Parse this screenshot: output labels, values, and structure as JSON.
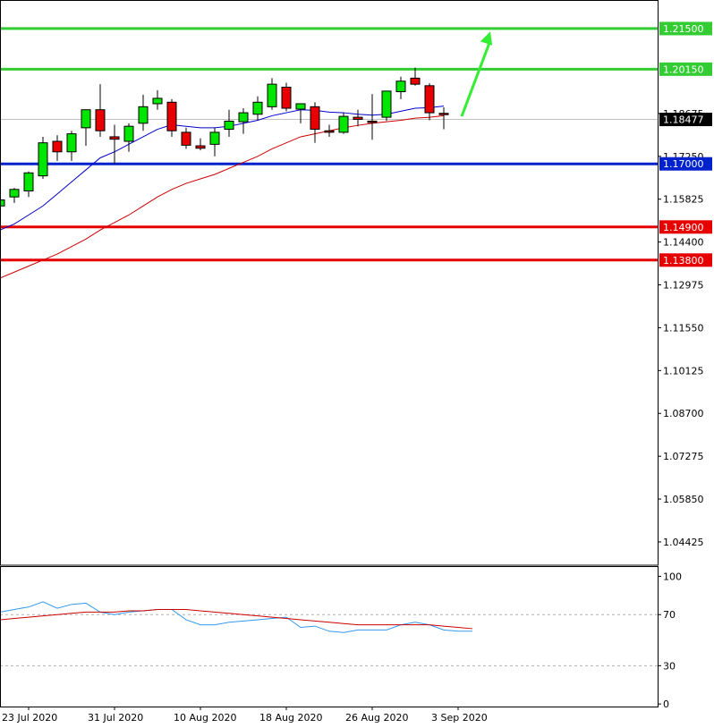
{
  "colors": {
    "bull": "#00e600",
    "bear": "#e60000",
    "wick": "#000000",
    "fast_ma": "#0000cc",
    "slow_ma": "#cc0000",
    "resistance": "#33cc33",
    "support": "#0022cc",
    "deep_support": "#e60000",
    "current_line": "#c0c0c0",
    "arrow": "#33ee33",
    "osc_fast": "#3399ee",
    "osc_slow": "#cc0000",
    "frame": "#000000",
    "grid": "#b0b0b0"
  },
  "chart_data": [
    {
      "type": "candlestick",
      "title": "",
      "y_axis": {
        "ylim": [
          1.0365,
          1.2245
        ],
        "position": "right"
      },
      "y_tick_labels": [
        {
          "value": 1.04425,
          "label": "1.04425"
        },
        {
          "value": 1.0585,
          "label": "1.05850"
        },
        {
          "value": 1.07275,
          "label": "1.07275"
        },
        {
          "value": 1.087,
          "label": "1.08700"
        },
        {
          "value": 1.10125,
          "label": "1.10125"
        },
        {
          "value": 1.1155,
          "label": "1.11550"
        },
        {
          "value": 1.12975,
          "label": "1.12975"
        },
        {
          "value": 1.144,
          "label": "1.14400"
        },
        {
          "value": 1.15825,
          "label": "1.15825"
        },
        {
          "value": 1.1725,
          "label": "1.17250"
        },
        {
          "value": 1.18675,
          "label": "1.18675"
        }
      ],
      "x_tick_labels": [
        {
          "index": 2,
          "label": "23 Jul 2020"
        },
        {
          "index": 8,
          "label": "31 Jul 2020"
        },
        {
          "index": 14,
          "label": "10 Aug 2020"
        },
        {
          "index": 20,
          "label": "18 Aug 2020"
        },
        {
          "index": 26,
          "label": "26 Aug 2020"
        },
        {
          "index": 32,
          "label": "3 Sep 2020"
        }
      ],
      "horizontal_levels": [
        {
          "value": 1.215,
          "label": "1.21500",
          "role": "resistance"
        },
        {
          "value": 1.2015,
          "label": "1.20150",
          "role": "resistance"
        },
        {
          "value": 1.17,
          "label": "1.17000",
          "role": "support"
        },
        {
          "value": 1.149,
          "label": "1.14900",
          "role": "deep_support"
        },
        {
          "value": 1.138,
          "label": "1.13800",
          "role": "deep_support"
        }
      ],
      "current_price": {
        "value": 1.18477,
        "label": "1.18477"
      },
      "candles": [
        {
          "o": 1.156,
          "h": 1.158,
          "l": 1.153,
          "c": 1.158
        },
        {
          "o": 1.159,
          "h": 1.162,
          "l": 1.157,
          "c": 1.1615
        },
        {
          "o": 1.161,
          "h": 1.1675,
          "l": 1.159,
          "c": 1.167
        },
        {
          "o": 1.166,
          "h": 1.179,
          "l": 1.165,
          "c": 1.177
        },
        {
          "o": 1.1775,
          "h": 1.1795,
          "l": 1.171,
          "c": 1.174
        },
        {
          "o": 1.174,
          "h": 1.181,
          "l": 1.171,
          "c": 1.18
        },
        {
          "o": 1.182,
          "h": 1.188,
          "l": 1.176,
          "c": 1.188
        },
        {
          "o": 1.188,
          "h": 1.1965,
          "l": 1.179,
          "c": 1.181
        },
        {
          "o": 1.179,
          "h": 1.183,
          "l": 1.17,
          "c": 1.1782
        },
        {
          "o": 1.1775,
          "h": 1.1835,
          "l": 1.174,
          "c": 1.1825
        },
        {
          "o": 1.1835,
          "h": 1.193,
          "l": 1.181,
          "c": 1.189
        },
        {
          "o": 1.19,
          "h": 1.1945,
          "l": 1.188,
          "c": 1.1918
        },
        {
          "o": 1.1905,
          "h": 1.1915,
          "l": 1.179,
          "c": 1.181
        },
        {
          "o": 1.1805,
          "h": 1.182,
          "l": 1.175,
          "c": 1.1762
        },
        {
          "o": 1.176,
          "h": 1.1785,
          "l": 1.1745,
          "c": 1.1752
        },
        {
          "o": 1.1765,
          "h": 1.182,
          "l": 1.1725,
          "c": 1.1805
        },
        {
          "o": 1.1815,
          "h": 1.188,
          "l": 1.179,
          "c": 1.1842
        },
        {
          "o": 1.184,
          "h": 1.1885,
          "l": 1.18,
          "c": 1.187
        },
        {
          "o": 1.1865,
          "h": 1.1925,
          "l": 1.1845,
          "c": 1.1905
        },
        {
          "o": 1.189,
          "h": 1.1985,
          "l": 1.188,
          "c": 1.1965
        },
        {
          "o": 1.1955,
          "h": 1.197,
          "l": 1.1875,
          "c": 1.1885
        },
        {
          "o": 1.1882,
          "h": 1.19,
          "l": 1.1835,
          "c": 1.19
        },
        {
          "o": 1.189,
          "h": 1.1905,
          "l": 1.177,
          "c": 1.1815
        },
        {
          "o": 1.181,
          "h": 1.183,
          "l": 1.179,
          "c": 1.1805
        },
        {
          "o": 1.1805,
          "h": 1.187,
          "l": 1.18,
          "c": 1.1858
        },
        {
          "o": 1.1855,
          "h": 1.188,
          "l": 1.1825,
          "c": 1.1848
        },
        {
          "o": 1.1842,
          "h": 1.1932,
          "l": 1.178,
          "c": 1.184
        },
        {
          "o": 1.1855,
          "h": 1.1942,
          "l": 1.1843,
          "c": 1.1942
        },
        {
          "o": 1.194,
          "h": 1.199,
          "l": 1.1915,
          "c": 1.1975
        },
        {
          "o": 1.1985,
          "h": 1.202,
          "l": 1.196,
          "c": 1.1965
        },
        {
          "o": 1.196,
          "h": 1.1968,
          "l": 1.1845,
          "c": 1.187
        },
        {
          "o": 1.1868,
          "h": 1.1888,
          "l": 1.1815,
          "c": 1.1867
        }
      ],
      "fast_ma": [
        1.148,
        1.15,
        1.153,
        1.156,
        1.16,
        1.164,
        1.168,
        1.172,
        1.174,
        1.1765,
        1.179,
        1.1815,
        1.183,
        1.1825,
        1.182,
        1.182,
        1.1825,
        1.1835,
        1.1845,
        1.186,
        1.187,
        1.188,
        1.1878,
        1.1872,
        1.187,
        1.1865,
        1.1862,
        1.1865,
        1.1875,
        1.1885,
        1.1887,
        1.1892
      ],
      "slow_ma": [
        1.132,
        1.134,
        1.136,
        1.138,
        1.14,
        1.1425,
        1.145,
        1.148,
        1.1505,
        1.153,
        1.156,
        1.159,
        1.1615,
        1.1635,
        1.165,
        1.1665,
        1.1685,
        1.1705,
        1.1725,
        1.175,
        1.177,
        1.179,
        1.18,
        1.181,
        1.182,
        1.1828,
        1.1835,
        1.184,
        1.1845,
        1.1852,
        1.1855,
        1.186
      ],
      "projection": {
        "from": 1.1858,
        "to": 1.214
      }
    },
    {
      "type": "line",
      "title": "",
      "ylim": [
        -2,
        108
      ],
      "y_tick_labels": [
        {
          "value": 100,
          "label": "100"
        },
        {
          "value": 70,
          "label": "70"
        },
        {
          "value": 30,
          "label": "30"
        },
        {
          "value": 0,
          "label": "0"
        }
      ],
      "dashed_levels": [
        70,
        30
      ],
      "series": [
        {
          "role": "osc_fast",
          "values": [
            72,
            74,
            76,
            80,
            75,
            78,
            79,
            72,
            70,
            72,
            73,
            74,
            74,
            66,
            62,
            62,
            64,
            65,
            66,
            67,
            68,
            60,
            61,
            57,
            56,
            58,
            58,
            58,
            62,
            64,
            62,
            58,
            57,
            57
          ]
        },
        {
          "role": "osc_slow",
          "values": [
            66,
            67,
            68,
            69,
            70,
            71,
            72,
            72,
            72,
            73,
            73,
            74,
            74,
            74,
            73,
            72,
            71,
            70,
            69,
            68,
            67,
            66,
            65,
            64,
            63,
            62,
            62,
            62,
            62,
            62,
            62,
            61,
            60,
            59
          ]
        }
      ]
    }
  ]
}
